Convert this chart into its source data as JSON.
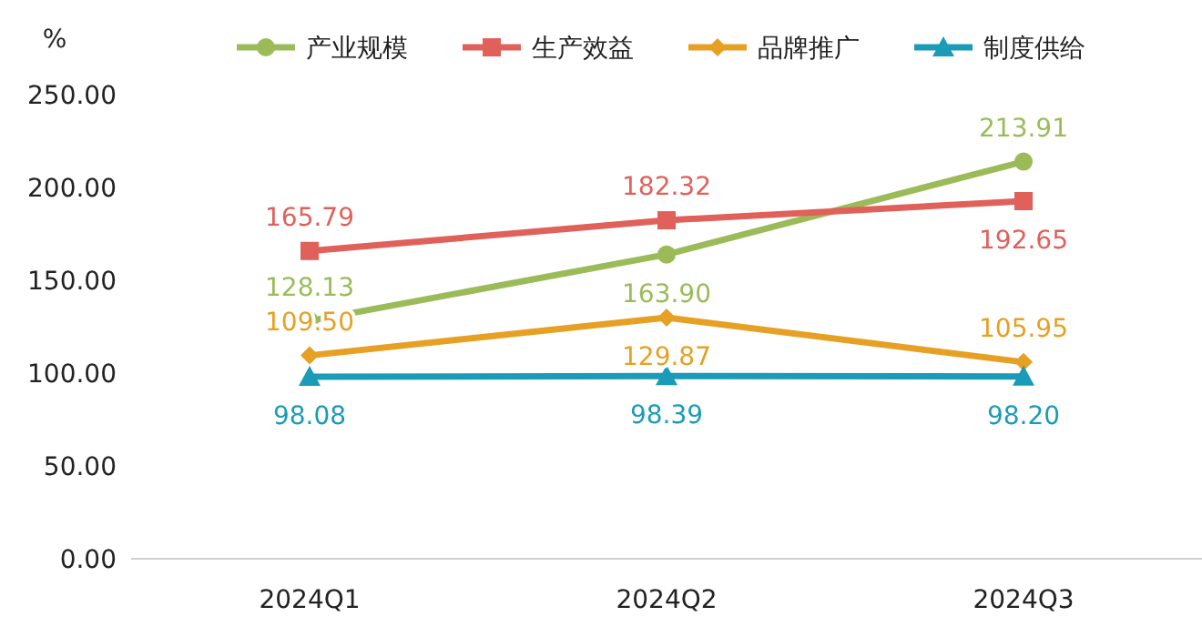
{
  "chart_data": {
    "type": "line",
    "ylabel": "%",
    "categories": [
      "2024Q1",
      "2024Q2",
      "2024Q3"
    ],
    "ylim": [
      0,
      250
    ],
    "yticks": [
      {
        "value": 0,
        "label": "0.00"
      },
      {
        "value": 50,
        "label": "50.00"
      },
      {
        "value": 100,
        "label": "100.00"
      },
      {
        "value": 150,
        "label": "150.00"
      },
      {
        "value": 200,
        "label": "200.00"
      },
      {
        "value": 250,
        "label": "250.00"
      }
    ],
    "grid": false,
    "legend": "top",
    "series": [
      {
        "name": "产业规模",
        "color": "#9bbb59",
        "marker": "circle",
        "values": [
          128.13,
          163.9,
          213.91
        ],
        "value_labels": [
          "128.13",
          "163.90",
          "213.91"
        ]
      },
      {
        "name": "生产效益",
        "color": "#e0605a",
        "marker": "square",
        "values": [
          165.79,
          182.32,
          192.65
        ],
        "value_labels": [
          "165.79",
          "182.32",
          "192.65"
        ]
      },
      {
        "name": "品牌推广",
        "color": "#e6a023",
        "marker": "diamond",
        "values": [
          109.5,
          129.87,
          105.95
        ],
        "value_labels": [
          "109.50",
          "129.87",
          "105.95"
        ]
      },
      {
        "name": "制度供给",
        "color": "#1a9bb8",
        "marker": "triangle",
        "values": [
          98.08,
          98.39,
          98.2
        ],
        "value_labels": [
          "98.08",
          "98.39",
          "98.20"
        ]
      }
    ]
  }
}
